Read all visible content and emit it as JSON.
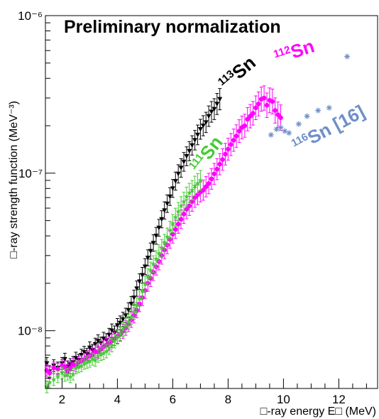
{
  "chart_data": {
    "type": "scatter",
    "title": "Preliminary normalization",
    "xlabel": "□-ray energy E□ (MeV)",
    "ylabel": "□-ray strength function (MeV⁻³)",
    "xlim": [
      1.4,
      13.4
    ],
    "ylim": [
      4.3e-09,
      1e-06
    ],
    "yscale": "log",
    "xticks": [
      "2",
      "4",
      "6",
      "8",
      "10",
      "12"
    ],
    "yticks": [
      "10⁻⁸",
      "10⁻⁷",
      "10⁻⁶"
    ],
    "grid": false,
    "legend": "none",
    "annotations": [
      {
        "mass": "113",
        "symbol": "Sn",
        "color": "#000000"
      },
      {
        "mass": "112",
        "symbol": "Sn",
        "color": "#ff00ff"
      },
      {
        "mass": "111",
        "symbol": "Sn",
        "color": "#44cc33"
      },
      {
        "mass": "116",
        "symbol": "Sn [16]",
        "color": "#6f8fc8"
      }
    ],
    "series": [
      {
        "color": "#000000",
        "marker": "triangle-down",
        "x": [
          1.45,
          1.55,
          1.7,
          1.85,
          2.0,
          2.1,
          2.2,
          2.3,
          2.4,
          2.5,
          2.6,
          2.7,
          2.8,
          2.9,
          3.0,
          3.1,
          3.2,
          3.3,
          3.4,
          3.5,
          3.6,
          3.7,
          3.8,
          3.9,
          4.0,
          4.1,
          4.2,
          4.3,
          4.4,
          4.5,
          4.6,
          4.7,
          4.8,
          4.9,
          5.0,
          5.1,
          5.2,
          5.3,
          5.4,
          5.5,
          5.6,
          5.7,
          5.8,
          5.9,
          6.0,
          6.1,
          6.2,
          6.3,
          6.4,
          6.5,
          6.6,
          6.7,
          6.8,
          6.9,
          7.0,
          7.1,
          7.2,
          7.3,
          7.4,
          7.5,
          7.6,
          7.7
        ],
        "y": [
          6.2e-09,
          5.5e-09,
          6e-09,
          5.8e-09,
          6.2e-09,
          6.6e-09,
          5.9e-09,
          6.1e-09,
          6.3e-09,
          6.7e-09,
          6.5e-09,
          7e-09,
          7.3e-09,
          7.1e-09,
          7.8e-09,
          7.5e-09,
          8.2e-09,
          8.6e-09,
          8.3e-09,
          8.9e-09,
          8.7e-09,
          9.4e-09,
          1e-08,
          9.7e-09,
          1.08e-08,
          1.12e-08,
          1.18e-08,
          1.25e-08,
          1.35e-08,
          1.48e-08,
          1.62e-08,
          1.85e-08,
          2.05e-08,
          2.25e-08,
          2.55e-08,
          2.9e-08,
          3.2e-08,
          3.6e-08,
          4e-08,
          4.5e-08,
          5.1e-08,
          5.8e-08,
          6.4e-08,
          7.1e-08,
          8e-08,
          8.9e-08,
          9.9e-08,
          1.08e-07,
          1.18e-07,
          1.28e-07,
          1.38e-07,
          1.5e-07,
          1.62e-07,
          1.75e-07,
          1.9e-07,
          2e-07,
          2.1e-07,
          2.3e-07,
          2.45e-07,
          2.55e-07,
          2.75e-07,
          2.95e-07
        ]
      },
      {
        "color": "#ff00ff",
        "marker": "circle",
        "x": [
          1.45,
          1.55,
          1.7,
          1.85,
          2.0,
          2.1,
          2.2,
          2.3,
          2.4,
          2.5,
          2.6,
          2.7,
          2.8,
          2.9,
          3.0,
          3.1,
          3.2,
          3.3,
          3.4,
          3.5,
          3.6,
          3.7,
          3.8,
          3.9,
          4.0,
          4.1,
          4.2,
          4.3,
          4.4,
          4.5,
          4.6,
          4.7,
          4.8,
          4.9,
          5.0,
          5.1,
          5.2,
          5.3,
          5.4,
          5.5,
          5.6,
          5.7,
          5.8,
          5.9,
          6.0,
          6.1,
          6.2,
          6.3,
          6.4,
          6.5,
          6.6,
          6.7,
          6.8,
          6.9,
          7.0,
          7.1,
          7.2,
          7.3,
          7.4,
          7.5,
          7.6,
          7.7,
          7.8,
          7.9,
          8.0,
          8.1,
          8.2,
          8.3,
          8.4,
          8.5,
          8.6,
          8.7,
          8.8,
          8.9,
          9.0,
          9.1,
          9.2,
          9.3,
          9.4,
          9.5,
          9.6,
          9.7,
          9.8,
          9.9
        ],
        "y": [
          5.6e-09,
          5.4e-09,
          5.8e-09,
          5.7e-09,
          6e-09,
          5.9e-09,
          5.6e-09,
          5.8e-09,
          6.1e-09,
          6e-09,
          6.3e-09,
          6.4e-09,
          6.6e-09,
          6.8e-09,
          6.9e-09,
          7.1e-09,
          7.4e-09,
          7.3e-09,
          7.6e-09,
          7.9e-09,
          8.1e-09,
          8.3e-09,
          8.6e-09,
          8.9e-09,
          9.2e-09,
          9.5e-09,
          9.9e-09,
          1.04e-08,
          1.1e-08,
          1.17e-08,
          1.25e-08,
          1.35e-08,
          1.48e-08,
          1.62e-08,
          1.8e-08,
          2e-08,
          2.15e-08,
          2.35e-08,
          2.55e-08,
          2.75e-08,
          3e-08,
          3.25e-08,
          3.5e-08,
          3.8e-08,
          4.1e-08,
          4.4e-08,
          4.75e-08,
          5.1e-08,
          5.5e-08,
          5.9e-08,
          6.2e-08,
          6.6e-08,
          7e-08,
          7.3e-08,
          7.6e-08,
          7.8e-08,
          8.2e-08,
          8.6e-08,
          9.2e-08,
          9.9e-08,
          1.06e-07,
          1.14e-07,
          1.22e-07,
          1.32e-07,
          1.42e-07,
          1.52e-07,
          1.62e-07,
          1.72e-07,
          1.85e-07,
          1.95e-07,
          2e-07,
          2.2e-07,
          2.3e-07,
          2.4e-07,
          2.6e-07,
          2.75e-07,
          2.95e-07,
          3e-07,
          2.7e-07,
          2.9e-07,
          2.85e-07,
          2.5e-07,
          2.35e-07,
          2.25e-07
        ]
      },
      {
        "color": "#44cc33",
        "marker": "star",
        "x": [
          1.45,
          1.55,
          1.7,
          1.85,
          2.0,
          2.1,
          2.2,
          2.3,
          2.4,
          2.5,
          2.6,
          2.7,
          2.8,
          2.9,
          3.0,
          3.1,
          3.2,
          3.3,
          3.4,
          3.5,
          3.6,
          3.7,
          3.8,
          3.9,
          4.0,
          4.1,
          4.2,
          4.3,
          4.4,
          4.5,
          4.6,
          4.7,
          4.8,
          4.9,
          5.0,
          5.1,
          5.2,
          5.3,
          5.4,
          5.5,
          5.6,
          5.7,
          5.8,
          5.9,
          6.0,
          6.1,
          6.2,
          6.3,
          6.4,
          6.5,
          6.6,
          6.7,
          6.8,
          6.9,
          7.0
        ],
        "y": [
          4.4e-09,
          4.7e-09,
          4.9e-09,
          5.1e-09,
          5.4e-09,
          5.2e-09,
          5.3e-09,
          5.1e-09,
          5.3e-09,
          5.8e-09,
          5.9e-09,
          6e-09,
          6.2e-09,
          6.3e-09,
          6.4e-09,
          6.6e-09,
          6.5e-09,
          6.9e-09,
          7.1e-09,
          7.2e-09,
          7.4e-09,
          7.8e-09,
          8.1e-09,
          8.6e-09,
          9.1e-09,
          9.6e-09,
          1.02e-08,
          1.08e-08,
          1.14e-08,
          1.22e-08,
          1.32e-08,
          1.45e-08,
          1.6e-08,
          1.78e-08,
          1.98e-08,
          2.2e-08,
          2.42e-08,
          2.65e-08,
          2.85e-08,
          3.1e-08,
          3.35e-08,
          3.6e-08,
          3.95e-08,
          4.35e-08,
          4.8e-08,
          5.25e-08,
          5.7e-08,
          6.2e-08,
          6.6e-08,
          7.1e-08,
          7.5e-08,
          7.8e-08,
          8.3e-08,
          8.6e-08,
          9e-08
        ]
      },
      {
        "color": "#6f8fc8",
        "marker": "asterisk",
        "x": [
          9.55,
          9.75,
          9.9,
          10.05,
          10.2,
          10.55,
          10.85,
          11.25,
          11.65,
          12.3
        ],
        "y": [
          1.75e-07,
          1.9e-07,
          1.95e-07,
          1.85e-07,
          1.8e-07,
          2.05e-07,
          2.3e-07,
          2.5e-07,
          2.6e-07,
          5.5e-07
        ]
      }
    ]
  }
}
